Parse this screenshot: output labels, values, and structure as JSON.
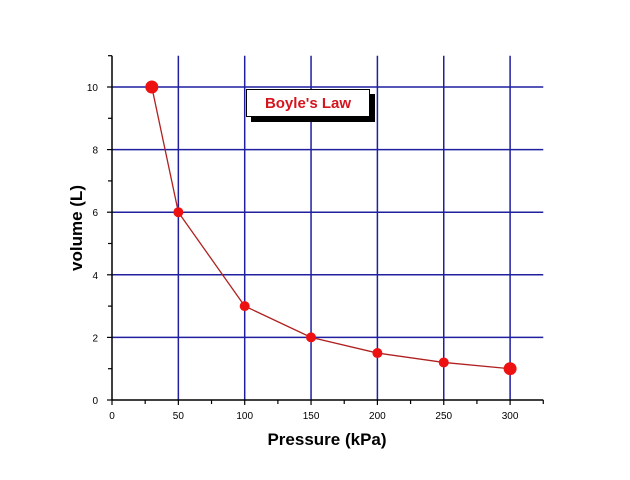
{
  "chart_data": {
    "type": "line",
    "title": "Boyle's Law",
    "xlabel": "Pressure (kPa)",
    "ylabel": "volume (L)",
    "x": [
      30,
      50,
      100,
      150,
      200,
      250,
      300
    ],
    "series": [
      {
        "name": "Boyle's Law",
        "values": [
          10,
          6,
          3,
          2,
          1.5,
          1.2,
          1.0
        ],
        "color": "#ee1111"
      }
    ],
    "xlim": [
      0,
      325
    ],
    "ylim": [
      0,
      11
    ],
    "xticks": [
      0,
      50,
      100,
      150,
      200,
      250,
      300
    ],
    "yticks": [
      0,
      2,
      4,
      6,
      8,
      10
    ],
    "grid": true,
    "grid_color": "#1f1fa0",
    "legend_position": "top-center"
  },
  "legend": {
    "label": "Boyle's Law"
  },
  "axes": {
    "xlabel": "Pressure (kPa)",
    "ylabel": "volume (L)"
  }
}
